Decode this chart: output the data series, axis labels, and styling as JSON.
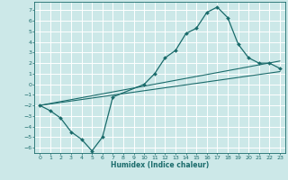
{
  "xlabel": "Humidex (Indice chaleur)",
  "bg_color": "#cce8e8",
  "grid_color": "#ffffff",
  "line_color": "#1a6b6b",
  "xlim": [
    -0.5,
    23.5
  ],
  "ylim": [
    -6.5,
    7.8
  ],
  "xticks": [
    0,
    1,
    2,
    3,
    4,
    5,
    6,
    7,
    8,
    9,
    10,
    11,
    12,
    13,
    14,
    15,
    16,
    17,
    18,
    19,
    20,
    21,
    22,
    23
  ],
  "yticks": [
    -6,
    -5,
    -4,
    -3,
    -2,
    -1,
    0,
    1,
    2,
    3,
    4,
    5,
    6,
    7
  ],
  "series1_x": [
    0,
    1,
    2,
    3,
    4,
    5,
    6,
    7,
    10,
    11,
    12,
    13,
    14,
    15,
    16,
    17,
    18,
    19,
    20,
    21,
    22,
    23
  ],
  "series1_y": [
    -2,
    -2.5,
    -3.2,
    -4.5,
    -5.2,
    -6.3,
    -5.0,
    -1.2,
    0.0,
    1.0,
    2.5,
    3.2,
    4.8,
    5.3,
    6.8,
    7.3,
    6.3,
    3.8,
    2.5,
    2.0,
    2.0,
    1.5
  ],
  "series2_x": [
    0,
    23
  ],
  "series2_y": [
    -2.0,
    1.2
  ],
  "series3_x": [
    0,
    23
  ],
  "series3_y": [
    -2.0,
    2.2
  ]
}
